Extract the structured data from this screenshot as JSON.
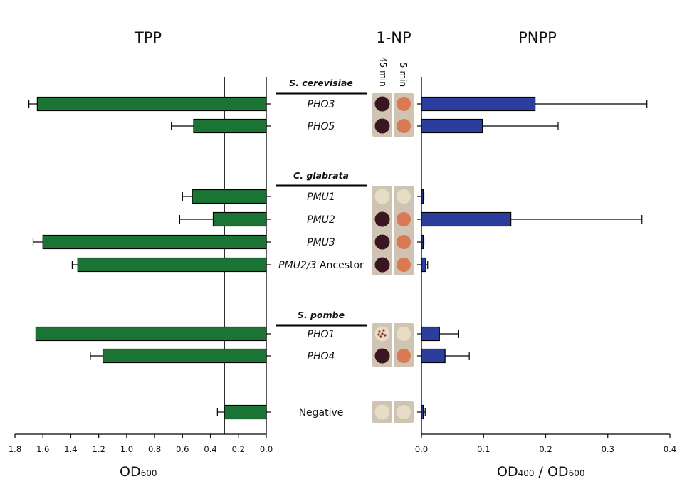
{
  "colors": {
    "tpp_bar": "#1a7535",
    "pnpp_bar": "#2b3e9e",
    "axis": "#000000",
    "spot_dark": "#3a1620",
    "spot_orange": "#d97a55",
    "spot_pale": "#e6ddc4",
    "plate_bg": "#cfc3b3"
  },
  "panels": {
    "tpp_title": "TPP",
    "np_title": "1-NP",
    "pnpp_title": "PNPP",
    "time_45": "45 min",
    "time_5": "5 min"
  },
  "groups": [
    {
      "species": "S. cerevisiae",
      "rows": [
        0,
        1
      ]
    },
    {
      "species": "C. glabrata",
      "rows": [
        2,
        3,
        4,
        5
      ]
    },
    {
      "species": "S. pombe",
      "rows": [
        6,
        7
      ]
    }
  ],
  "rows": [
    {
      "label": "PHO3",
      "italic": true,
      "spot45": "dark",
      "spot5": "orange"
    },
    {
      "label": "PHO5",
      "italic": true,
      "spot45": "dark",
      "spot5": "orange"
    },
    {
      "label": "PMU1",
      "italic": true,
      "spot45": "pale",
      "spot5": "pale"
    },
    {
      "label": "PMU2",
      "italic": true,
      "spot45": "dark",
      "spot5": "orange"
    },
    {
      "label": "PMU3",
      "italic": true,
      "spot45": "dark",
      "spot5": "orange"
    },
    {
      "label_italic": "PMU2/3",
      "label_plain": " Ancestor",
      "label": "PMU2/3 Ancestor",
      "italic": false,
      "spot45": "dark",
      "spot5": "orange"
    },
    {
      "label": "PHO1",
      "italic": true,
      "spot45": "speckled",
      "spot5": "pale"
    },
    {
      "label": "PHO4",
      "italic": true,
      "spot45": "dark",
      "spot5": "orange"
    },
    {
      "label": "Negative",
      "italic": false,
      "spot45": "pale",
      "spot5": "pale"
    }
  ],
  "chart_data": [
    {
      "type": "bar",
      "orientation": "horizontal",
      "title": "TPP",
      "xlabel": "OD600",
      "xlim": [
        1.8,
        0.0
      ],
      "xticks": [
        "1.8",
        "1.6",
        "1.4",
        "1.2",
        "1.0",
        "0.8",
        "0.6",
        "0.4",
        "0.2",
        "0.0"
      ],
      "reference_line": 0.3,
      "categories": [
        "PHO3",
        "PHO5",
        "PMU1",
        "PMU2",
        "PMU3",
        "PMU2/3 Ancestor",
        "PHO1",
        "PHO4",
        "Negative"
      ],
      "values": [
        1.64,
        0.52,
        0.53,
        0.38,
        1.6,
        1.35,
        1.65,
        1.17,
        0.3
      ],
      "errors": [
        0.06,
        0.16,
        0.07,
        0.24,
        0.07,
        0.04,
        0.0,
        0.09,
        0.05
      ]
    },
    {
      "type": "bar",
      "orientation": "horizontal",
      "title": "PNPP",
      "xlabel": "OD400 / OD600",
      "xlim": [
        0.0,
        0.4
      ],
      "xticks": [
        "0.0",
        "0.1",
        "0.2",
        "0.3",
        "0.4"
      ],
      "categories": [
        "PHO3",
        "PHO5",
        "PMU1",
        "PMU2",
        "PMU3",
        "PMU2/3 Ancestor",
        "PHO1",
        "PHO4",
        "Negative"
      ],
      "values": [
        0.183,
        0.098,
        0.002,
        0.144,
        0.002,
        0.007,
        0.029,
        0.038,
        0.003
      ],
      "errors": [
        0.18,
        0.122,
        0.002,
        0.211,
        0.002,
        0.003,
        0.031,
        0.039,
        0.003
      ]
    }
  ]
}
